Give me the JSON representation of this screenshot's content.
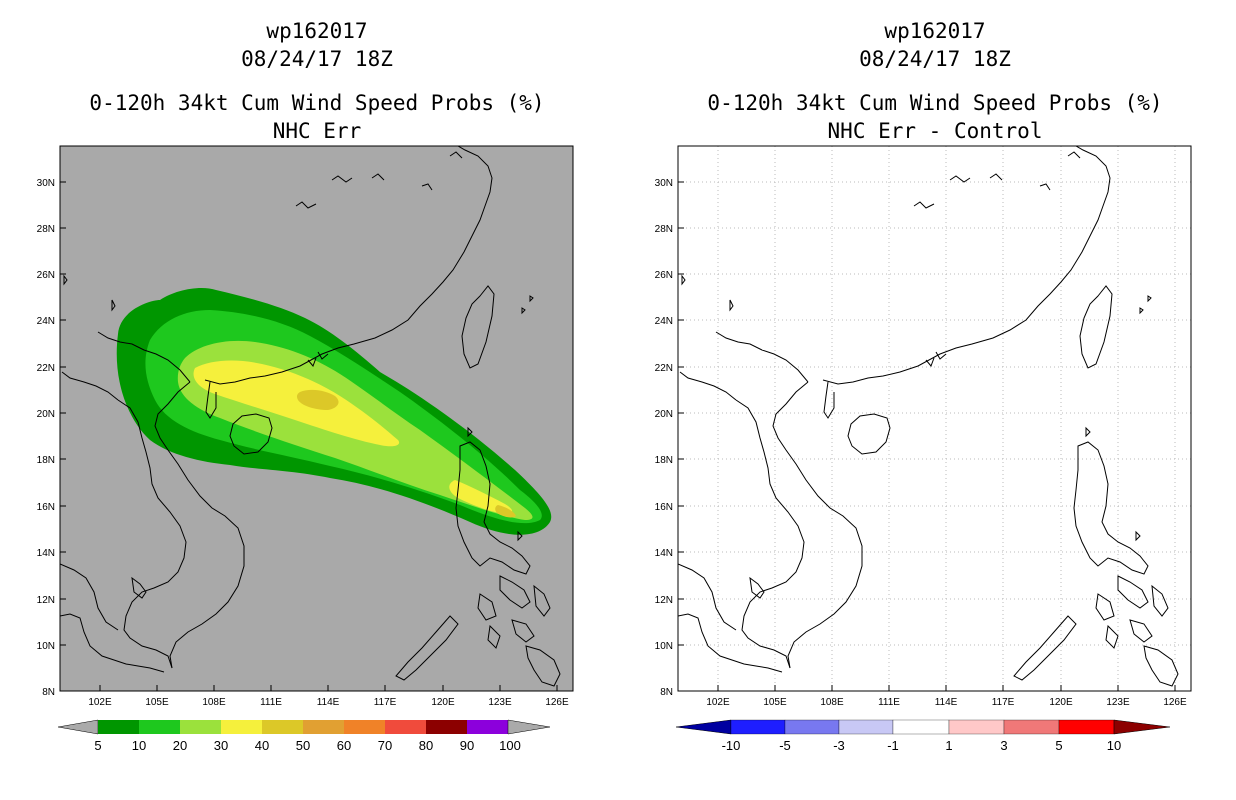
{
  "left": {
    "storm_id": "wp162017",
    "datetime": "08/24/17 18Z",
    "title": "0-120h 34kt Cum Wind Speed Probs (%)",
    "subtitle": "NHC Err",
    "lat_labels": [
      "30N",
      "28N",
      "26N",
      "24N",
      "22N",
      "20N",
      "18N",
      "16N",
      "14N",
      "12N",
      "10N",
      "8N"
    ],
    "lon_labels": [
      "102E",
      "105E",
      "108E",
      "111E",
      "114E",
      "117E",
      "120E",
      "123E",
      "126E"
    ],
    "colorbar": {
      "labels": [
        "5",
        "10",
        "20",
        "30",
        "40",
        "50",
        "60",
        "70",
        "80",
        "90",
        "100"
      ],
      "colors": [
        "#009600",
        "#1ec81e",
        "#9be13c",
        "#f5f03c",
        "#dcc828",
        "#e1a032",
        "#f08228",
        "#f04b3c",
        "#8c0000",
        "#8c00dc"
      ],
      "end_color": "#aaaaaa"
    },
    "background_color": "#a9a9a9"
  },
  "right": {
    "storm_id": "wp162017",
    "datetime": "08/24/17 18Z",
    "title": "0-120h 34kt Cum Wind Speed Probs (%)",
    "subtitle": "NHC Err - Control",
    "lat_labels": [
      "30N",
      "28N",
      "26N",
      "24N",
      "22N",
      "20N",
      "18N",
      "16N",
      "14N",
      "12N",
      "10N",
      "8N"
    ],
    "lon_labels": [
      "102E",
      "105E",
      "108E",
      "111E",
      "114E",
      "117E",
      "120E",
      "123E",
      "126E"
    ],
    "colorbar": {
      "labels": [
        "-10",
        "-5",
        "-3",
        "-1",
        "1",
        "3",
        "5",
        "10"
      ],
      "colors": [
        "#0000b4",
        "#1e1eff",
        "#7878f0",
        "#c8c8f5",
        "#ffffff",
        "#ffc8c8",
        "#f07878",
        "#ff0000"
      ],
      "left_end_color": "#0000a0",
      "right_end_color": "#8c0000"
    }
  }
}
